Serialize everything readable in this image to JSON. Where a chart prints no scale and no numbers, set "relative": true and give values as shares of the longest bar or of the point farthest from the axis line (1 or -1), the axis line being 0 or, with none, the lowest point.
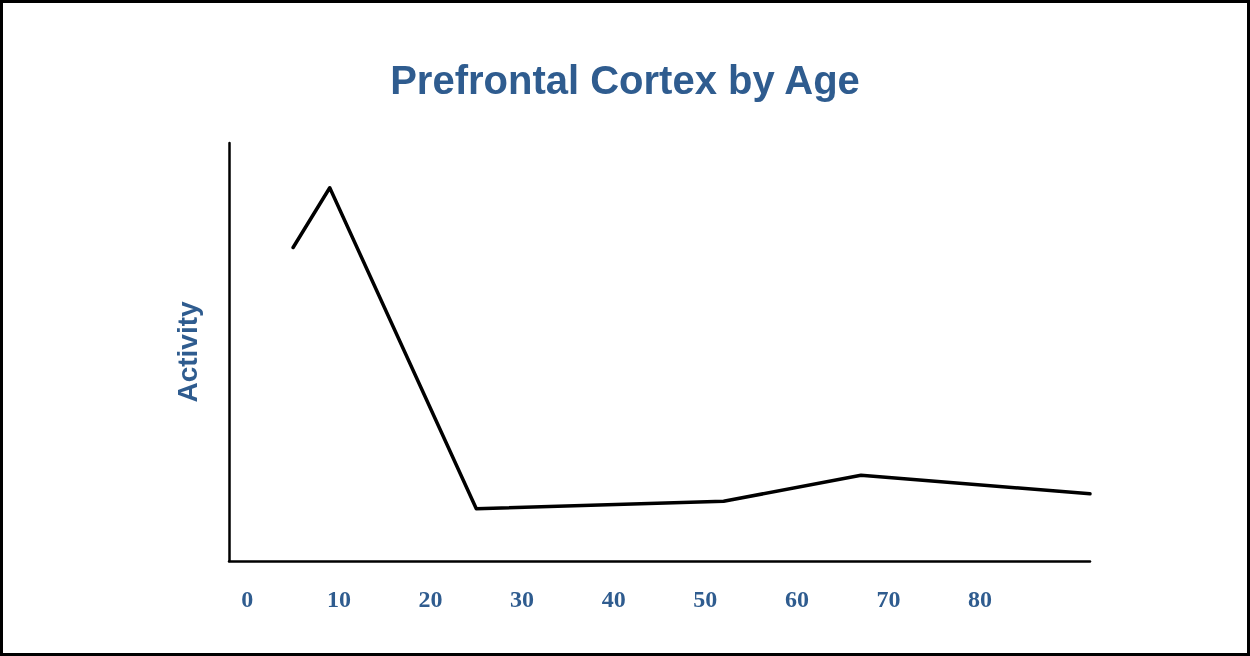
{
  "chart_data": {
    "type": "line",
    "title": "Prefrontal Cortex by Age",
    "ylabel": "Activity",
    "relative": true,
    "x": [
      5,
      9,
      25,
      52,
      67,
      92
    ],
    "series": [
      {
        "color": "#000000",
        "values": [
          0.84,
          1,
          0.14,
          0.16,
          0.23,
          0.18
        ]
      }
    ],
    "xlim": [
      -2,
      92
    ],
    "xticks": [
      0,
      10,
      20,
      30,
      40,
      50,
      60,
      70,
      80
    ],
    "tick_labels": "x",
    "grid": false,
    "marker": "none",
    "line_style": "solid"
  }
}
